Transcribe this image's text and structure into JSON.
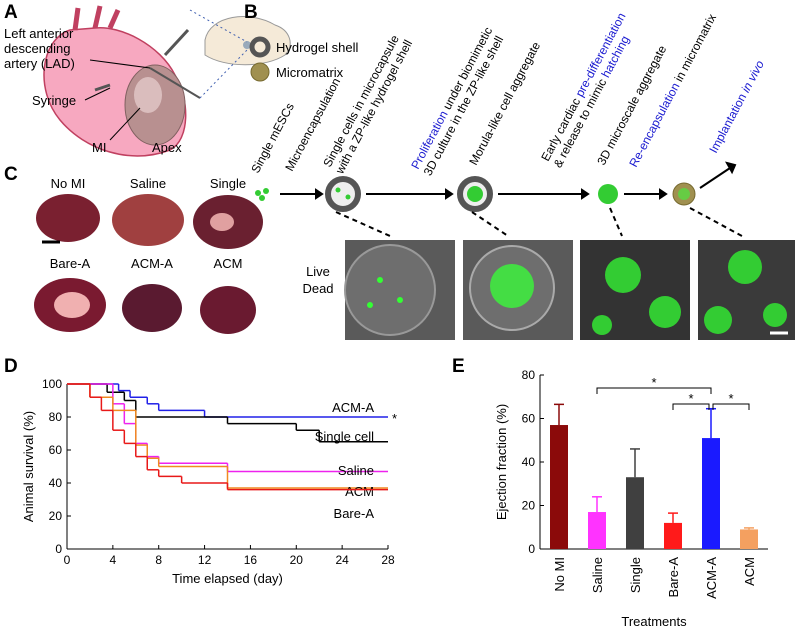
{
  "panel_a": {
    "label": "A",
    "lad": [
      "Left anterior",
      "descending",
      "artery (LAD)"
    ],
    "syringe": "Syringe",
    "mi": "MI",
    "apex": "Apex"
  },
  "panel_b": {
    "label": "B",
    "legend": [
      "Hydrogel shell",
      "Micromatrix"
    ],
    "steps": [
      {
        "lines": [
          [
            {
              "text": "Single mESCs",
              "color": "#000000"
            }
          ]
        ]
      },
      {
        "lines": [
          [
            {
              "text": "Microencapsulation",
              "color": "#000000"
            }
          ]
        ]
      },
      {
        "lines": [
          [
            {
              "text": "Single cells in microcapsule",
              "color": "#000000"
            }
          ],
          [
            {
              "text": "with a ZP-like hydrogel shell",
              "color": "#000000"
            }
          ]
        ]
      },
      {
        "lines": [
          [
            {
              "text": "Proliferation",
              "color": "#1a1ad0"
            },
            {
              "text": " under biomimetic",
              "color": "#000000"
            }
          ],
          [
            {
              "text": "3D culture in the ZP-like shell",
              "color": "#000000"
            }
          ]
        ]
      },
      {
        "lines": [
          [
            {
              "text": "Morula-like cell aggregate",
              "color": "#000000"
            }
          ]
        ]
      },
      {
        "lines": [
          [
            {
              "text": "Early cardiac ",
              "color": "#000000"
            },
            {
              "text": "pre-differentiation",
              "color": "#1a1ad0"
            }
          ],
          [
            {
              "text": "& release to mimic ",
              "color": "#000000"
            },
            {
              "text": "hatching",
              "color": "#1a1ad0"
            }
          ]
        ]
      },
      {
        "lines": [
          [
            {
              "text": "3D microscale aggregate",
              "color": "#000000"
            }
          ]
        ]
      },
      {
        "lines": [
          [
            {
              "text": "Re-encapsulation",
              "color": "#1a1ad0"
            },
            {
              "text": " in micromatrix",
              "color": "#000000"
            }
          ]
        ]
      },
      {
        "lines": [
          [
            {
              "text": "Implantation ",
              "color": "#1a1ad0"
            },
            {
              "text": "in vivo",
              "color": "#1a1ad0",
              "italic": true
            }
          ]
        ]
      }
    ],
    "stain": [
      {
        "text": "Live",
        "color": "#2a8a2a"
      },
      {
        "text": "Dead",
        "color": "#e02020"
      }
    ]
  },
  "panel_c": {
    "label": "C",
    "samples": [
      "No MI",
      "Saline",
      "Single",
      "Bare-A",
      "ACM-A",
      "ACM"
    ]
  },
  "chart_data": [
    {
      "type": "step",
      "label": "D",
      "xlabel": "Time elapsed (day)",
      "ylabel": "Animal survival (%)",
      "xlim": [
        0,
        28
      ],
      "xticks": [
        0,
        4,
        8,
        12,
        16,
        20,
        24,
        28
      ],
      "ylim": [
        0,
        100
      ],
      "yticks": [
        0,
        20,
        40,
        60,
        80,
        100
      ],
      "series": [
        {
          "name": "ACM-A",
          "color": "#2020e8",
          "x": [
            0,
            4.5,
            5.5,
            7,
            8,
            12,
            28
          ],
          "values": [
            100,
            96,
            92,
            88,
            84,
            80,
            80
          ]
        },
        {
          "name": "Single cell",
          "color": "#000000",
          "x": [
            0,
            3.5,
            5,
            6,
            14,
            20,
            22,
            28
          ],
          "values": [
            100,
            95,
            90,
            80,
            76,
            72,
            65,
            65
          ]
        },
        {
          "name": "Saline",
          "color": "#ee22ee",
          "x": [
            0,
            4,
            5,
            6,
            7,
            8,
            14,
            28
          ],
          "values": [
            100,
            88,
            76,
            64,
            56,
            52,
            47,
            47
          ]
        },
        {
          "name": "ACM",
          "color": "#f08a20",
          "x": [
            0,
            2,
            4,
            6,
            7,
            8,
            14,
            28
          ],
          "values": [
            100,
            92,
            84,
            63,
            55,
            50,
            37,
            37
          ]
        },
        {
          "name": "Bare-A",
          "color": "#e81818",
          "x": [
            0,
            2,
            3,
            4,
            5,
            6,
            7,
            8,
            10,
            14,
            28
          ],
          "values": [
            100,
            92,
            84,
            72,
            64,
            56,
            48,
            44,
            40,
            36,
            36
          ]
        }
      ],
      "annotation": "*"
    },
    {
      "type": "bar",
      "label": "E",
      "xlabel": "Treatments",
      "ylabel": "Ejection fraction (%)",
      "categories": [
        "No MI",
        "Saline",
        "Single",
        "Bare-A",
        "ACM-A",
        "ACM"
      ],
      "values": [
        57,
        17,
        33,
        12,
        51,
        9
      ],
      "errors": [
        9.5,
        7,
        13,
        4.5,
        13.5,
        0.7
      ],
      "colors": [
        "#8b0a0a",
        "#ff33ff",
        "#404040",
        "#ff1a1a",
        "#1a1aff",
        "#f4a060"
      ],
      "ylim": [
        0,
        80
      ],
      "yticks": [
        0,
        20,
        40,
        60,
        80
      ],
      "brackets": [
        {
          "from": "Saline",
          "to": "ACM-A",
          "label": "*"
        },
        {
          "from": "Bare-A",
          "to": "ACM-A",
          "label": "*"
        },
        {
          "from": "ACM-A",
          "to": "ACM",
          "label": "*"
        }
      ]
    }
  ]
}
